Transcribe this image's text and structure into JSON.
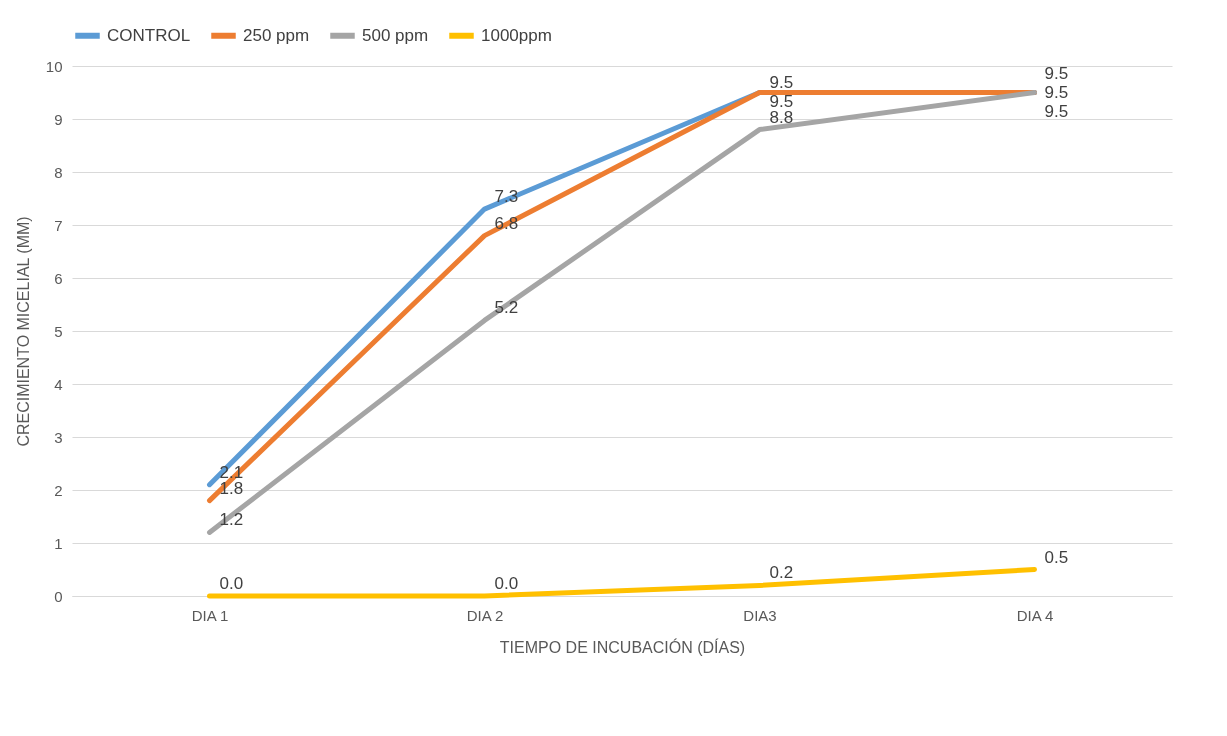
{
  "chart_data": {
    "type": "line",
    "xlabel": "TIEMPO DE INCUBACIÓN (DÍAS)",
    "ylabel": "CRECIMIENTO MICELIAL (MM)",
    "categories": [
      "DIA 1",
      "DIA 2",
      "DIA3",
      "DIA 4"
    ],
    "series": [
      {
        "name": "CONTROL",
        "color": "#5b9bd5",
        "values": [
          2.1,
          7.3,
          9.5,
          9.5
        ],
        "value_labels": [
          "2.1",
          "7.3",
          "9.5",
          "9.5"
        ]
      },
      {
        "name": "250 ppm",
        "color": "#ed7d31",
        "values": [
          1.8,
          6.8,
          9.5,
          9.5
        ],
        "value_labels": [
          "1.8",
          "6.8",
          "9.5",
          "9.5"
        ]
      },
      {
        "name": "500 ppm",
        "color": "#a5a5a5",
        "values": [
          1.2,
          5.2,
          8.8,
          9.5
        ],
        "value_labels": [
          "1.2",
          "5.2",
          "8.8",
          "9.5"
        ]
      },
      {
        "name": "1000ppm",
        "color": "#ffc000",
        "values": [
          0,
          0,
          0.2,
          0.5
        ],
        "value_labels": [
          "0.0",
          "0.0",
          "0.2",
          "0.5"
        ]
      }
    ],
    "ylim": [
      0,
      10
    ],
    "yticks": [
      0,
      1,
      2,
      3,
      4,
      5,
      6,
      7,
      8,
      9,
      10
    ],
    "grid": "y",
    "legend": "top",
    "marker": "none",
    "line_style": "solid"
  }
}
